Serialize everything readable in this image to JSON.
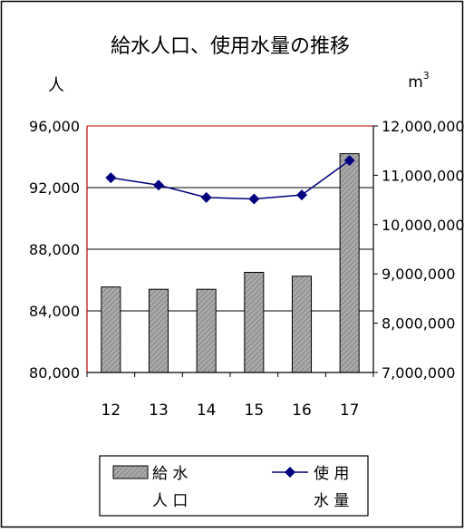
{
  "chart_data": {
    "type": "bar",
    "title": "給水人口、使用水量の推移",
    "y_left_unit": "人",
    "y_right_unit_base": "m",
    "y_right_unit_exp": "3",
    "categories": [
      "12",
      "13",
      "14",
      "15",
      "16",
      "17"
    ],
    "series": [
      {
        "name_line1": "給 水",
        "name_line2": "人 口",
        "type": "bar",
        "axis": "left",
        "values": [
          85550,
          85400,
          85400,
          86500,
          86250,
          94200
        ]
      },
      {
        "name_line1": "使 用",
        "name_line2": "水 量",
        "type": "line",
        "axis": "right",
        "values": [
          10950000,
          10800000,
          10550000,
          10520000,
          10600000,
          11300000
        ]
      }
    ],
    "y_left": {
      "min": 80000,
      "max": 96000,
      "ticks": [
        "80,000",
        "84,000",
        "88,000",
        "92,000",
        "96,000"
      ],
      "tick_values": [
        80000,
        84000,
        88000,
        92000,
        96000
      ]
    },
    "y_right": {
      "min": 7000000,
      "max": 12000000,
      "ticks": [
        "7,000,000",
        "8,000,000",
        "9,000,000",
        "10,000,000",
        "11,000,000",
        "12,000,000"
      ],
      "tick_values": [
        7000000,
        8000000,
        9000000,
        10000000,
        11000000,
        12000000
      ]
    },
    "gridlines": true,
    "legend_position": "bottom",
    "colors": {
      "bar_fill": "#a9a9a9",
      "line": "#00007f",
      "grid": "#000000",
      "plot_top_border": "#c00000"
    }
  }
}
